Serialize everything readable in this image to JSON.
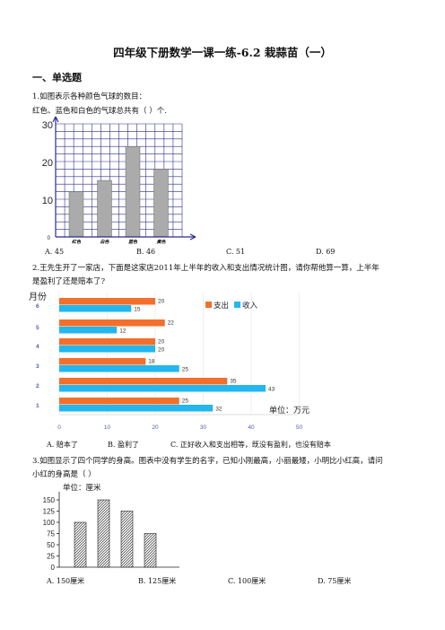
{
  "title": "四年级下册数学一课一练-6.2 栽蒜苗（一）",
  "section1": "一、单选题",
  "q1": {
    "stem": "1.如图表示各种颜色气球的数目：",
    "sub": "红色、蓝色和白色的气球总共有（    ）个.",
    "options": [
      "A. 45",
      "B. 46",
      "C. 51",
      "D. 69"
    ]
  },
  "q2": {
    "stem1": "2.王先生开了一家店，下面是这家店2011年上半年的收入和支出情况统计图，请你帮他算一算，上半年",
    "stem2": "是盈利了还是赔本了?",
    "options": [
      "A. 赔本了",
      "B. 盈利了",
      "C. 正好收入和支出相等，既没有盈利，也没有赔本"
    ]
  },
  "q3": {
    "stem1": "3.如图显示了四个同学的身高。图表中没有学生的名字，已知小刚最高，小丽最矮，小明比小红高，请问",
    "stem2": "小红的身高是（    ）",
    "options": [
      "A. 150厘米",
      "B. 125厘米",
      "C. 100厘米",
      "D. 75厘米"
    ]
  },
  "chart_data": [
    {
      "type": "bar",
      "categories": [
        "红色",
        "白色",
        "蓝色",
        "黄色"
      ],
      "values": [
        12,
        15,
        24,
        18
      ],
      "ylim": [
        0,
        30
      ],
      "yticks": [
        0,
        10,
        20,
        30
      ],
      "grid": true
    },
    {
      "type": "bar",
      "orientation": "horizontal",
      "ylabel": "月份",
      "categories": [
        "1",
        "2",
        "3",
        "4",
        "5",
        "6"
      ],
      "series": [
        {
          "name": "支出",
          "values": [
            25,
            35,
            18,
            20,
            22,
            20
          ],
          "color": "#f36f2b"
        },
        {
          "name": "收入",
          "values": [
            32,
            43,
            25,
            20,
            12,
            15
          ],
          "color": "#22b7ef"
        }
      ],
      "xlim": [
        0,
        50
      ],
      "xticks": [
        0,
        10,
        20,
        30,
        40,
        50
      ],
      "unit_note": "单位：万元"
    },
    {
      "type": "bar",
      "unit_note": "单位：厘米",
      "values": [
        100,
        150,
        125,
        75
      ],
      "ylim": [
        0,
        150
      ],
      "yticks": [
        0,
        25,
        50,
        75,
        100,
        125,
        150
      ]
    }
  ]
}
